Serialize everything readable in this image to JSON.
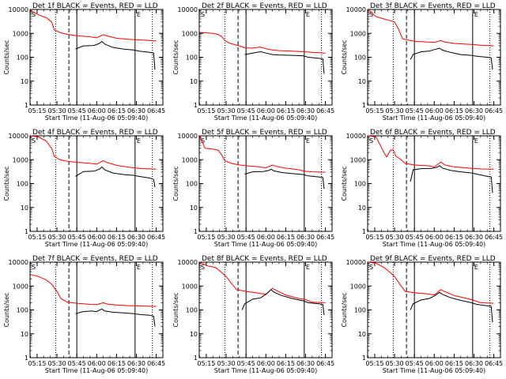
{
  "chart_data": {
    "type": "line",
    "legend_text": "BLACK = Events, RED = LLD",
    "xlabel": "Start Time (11-Aug-06 05:09:40)",
    "ylabel": "Counts/sec",
    "x_tick_labels": [
      "05:15",
      "05:30",
      "05:45",
      "06:00",
      "06:15",
      "06:30",
      "06:45"
    ],
    "x_tick_minutes": [
      15,
      30,
      45,
      60,
      75,
      90,
      105
    ],
    "xlim_minutes": [
      9.67,
      110
    ],
    "y_scale": "log",
    "ylim": [
      1,
      10000
    ],
    "y_tick_labels": [
      "1",
      "10",
      "100",
      "1000",
      "10000"
    ],
    "series_colors": {
      "events": "#000000",
      "lld": "#ff0000"
    },
    "markers_minutes": {
      "dotted": [
        29,
        102
      ],
      "dashed": [
        39
      ],
      "solid": [
        45,
        89
      ]
    },
    "corner_marks": [
      "S",
      "E"
    ],
    "panels": [
      {
        "title": "Det 1f",
        "lld": [
          [
            10,
            9000
          ],
          [
            16,
            6000
          ],
          [
            22,
            4500
          ],
          [
            26,
            3000
          ],
          [
            28,
            1400
          ],
          [
            32,
            1100
          ],
          [
            38,
            900
          ],
          [
            45,
            800
          ],
          [
            55,
            720
          ],
          [
            60,
            650
          ],
          [
            65,
            880
          ],
          [
            68,
            780
          ],
          [
            75,
            620
          ],
          [
            85,
            560
          ],
          [
            89,
            540
          ],
          [
            95,
            520
          ],
          [
            105,
            480
          ]
        ],
        "events": [
          [
            44,
            220
          ],
          [
            50,
            300
          ],
          [
            58,
            310
          ],
          [
            62,
            380
          ],
          [
            64,
            460
          ],
          [
            66,
            360
          ],
          [
            72,
            260
          ],
          [
            80,
            220
          ],
          [
            88,
            200
          ],
          [
            92,
            180
          ],
          [
            100,
            160
          ],
          [
            103,
            150
          ],
          [
            104,
            30
          ]
        ]
      },
      {
        "title": "Det 2f",
        "lld": [
          [
            10,
            1100
          ],
          [
            20,
            1000
          ],
          [
            24,
            900
          ],
          [
            27,
            700
          ],
          [
            29,
            500
          ],
          [
            33,
            380
          ],
          [
            40,
            300
          ],
          [
            44,
            250
          ],
          [
            50,
            240
          ],
          [
            56,
            270
          ],
          [
            60,
            230
          ],
          [
            65,
            200
          ],
          [
            70,
            190
          ],
          [
            80,
            180
          ],
          [
            89,
            170
          ],
          [
            95,
            160
          ],
          [
            105,
            150
          ]
        ],
        "events": [
          [
            44,
            130
          ],
          [
            50,
            150
          ],
          [
            56,
            170
          ],
          [
            60,
            150
          ],
          [
            65,
            130
          ],
          [
            70,
            125
          ],
          [
            80,
            120
          ],
          [
            88,
            115
          ],
          [
            92,
            100
          ],
          [
            100,
            90
          ],
          [
            103,
            85
          ],
          [
            104,
            20
          ]
        ]
      },
      {
        "title": "Det 3f",
        "lld": [
          [
            10,
            10000
          ],
          [
            16,
            5000
          ],
          [
            22,
            4000
          ],
          [
            26,
            3500
          ],
          [
            30,
            3000
          ],
          [
            33,
            1500
          ],
          [
            36,
            600
          ],
          [
            40,
            520
          ],
          [
            45,
            470
          ],
          [
            55,
            430
          ],
          [
            60,
            420
          ],
          [
            65,
            500
          ],
          [
            68,
            430
          ],
          [
            75,
            380
          ],
          [
            85,
            350
          ],
          [
            89,
            340
          ],
          [
            95,
            320
          ],
          [
            105,
            300
          ]
        ],
        "events": [
          [
            42,
            80
          ],
          [
            44,
            130
          ],
          [
            50,
            170
          ],
          [
            56,
            180
          ],
          [
            60,
            210
          ],
          [
            64,
            240
          ],
          [
            66,
            200
          ],
          [
            72,
            160
          ],
          [
            80,
            130
          ],
          [
            88,
            120
          ],
          [
            92,
            110
          ],
          [
            100,
            100
          ],
          [
            103,
            95
          ],
          [
            104,
            30
          ]
        ]
      },
      {
        "title": "Det 4f",
        "lld": [
          [
            10,
            10000
          ],
          [
            16,
            9000
          ],
          [
            22,
            6000
          ],
          [
            26,
            3000
          ],
          [
            28,
            1400
          ],
          [
            32,
            1000
          ],
          [
            38,
            850
          ],
          [
            45,
            780
          ],
          [
            55,
            700
          ],
          [
            60,
            650
          ],
          [
            65,
            900
          ],
          [
            68,
            760
          ],
          [
            75,
            580
          ],
          [
            85,
            480
          ],
          [
            89,
            450
          ],
          [
            95,
            420
          ],
          [
            105,
            400
          ]
        ],
        "events": [
          [
            44,
            200
          ],
          [
            50,
            320
          ],
          [
            58,
            330
          ],
          [
            62,
            400
          ],
          [
            64,
            500
          ],
          [
            66,
            380
          ],
          [
            72,
            280
          ],
          [
            80,
            240
          ],
          [
            88,
            220
          ],
          [
            92,
            200
          ],
          [
            100,
            170
          ],
          [
            103,
            150
          ],
          [
            104,
            70
          ]
        ]
      },
      {
        "title": "Det 5f",
        "lld": [
          [
            10,
            10000
          ],
          [
            14,
            3000
          ],
          [
            20,
            2800
          ],
          [
            24,
            2500
          ],
          [
            27,
            1500
          ],
          [
            29,
            900
          ],
          [
            34,
            700
          ],
          [
            40,
            600
          ],
          [
            45,
            560
          ],
          [
            55,
            500
          ],
          [
            60,
            460
          ],
          [
            65,
            600
          ],
          [
            68,
            520
          ],
          [
            75,
            440
          ],
          [
            85,
            380
          ],
          [
            89,
            330
          ],
          [
            95,
            310
          ],
          [
            105,
            300
          ]
        ],
        "events": [
          [
            44,
            250
          ],
          [
            50,
            310
          ],
          [
            58,
            320
          ],
          [
            62,
            350
          ],
          [
            64,
            400
          ],
          [
            66,
            340
          ],
          [
            72,
            290
          ],
          [
            80,
            260
          ],
          [
            88,
            240
          ],
          [
            92,
            210
          ],
          [
            100,
            190
          ],
          [
            103,
            180
          ],
          [
            104,
            60
          ]
        ]
      },
      {
        "title": "Det 6f",
        "lld": [
          [
            10,
            10000
          ],
          [
            16,
            9000
          ],
          [
            22,
            2000
          ],
          [
            24,
            1300
          ],
          [
            27,
            2500
          ],
          [
            29,
            2600
          ],
          [
            31,
            1400
          ],
          [
            34,
            1100
          ],
          [
            38,
            700
          ],
          [
            45,
            600
          ],
          [
            55,
            560
          ],
          [
            60,
            500
          ],
          [
            65,
            800
          ],
          [
            68,
            600
          ],
          [
            75,
            500
          ],
          [
            85,
            450
          ],
          [
            89,
            430
          ],
          [
            95,
            410
          ],
          [
            105,
            400
          ]
        ],
        "events": [
          [
            42,
            120
          ],
          [
            44,
            380
          ],
          [
            50,
            420
          ],
          [
            58,
            430
          ],
          [
            62,
            480
          ],
          [
            64,
            560
          ],
          [
            66,
            450
          ],
          [
            72,
            360
          ],
          [
            80,
            310
          ],
          [
            88,
            280
          ],
          [
            92,
            250
          ],
          [
            100,
            200
          ],
          [
            103,
            190
          ],
          [
            104,
            40
          ]
        ]
      },
      {
        "title": "Det 7f",
        "lld": [
          [
            10,
            3000
          ],
          [
            16,
            2500
          ],
          [
            22,
            1800
          ],
          [
            26,
            1200
          ],
          [
            30,
            600
          ],
          [
            33,
            300
          ],
          [
            38,
            210
          ],
          [
            45,
            190
          ],
          [
            55,
            170
          ],
          [
            60,
            165
          ],
          [
            65,
            200
          ],
          [
            68,
            175
          ],
          [
            75,
            160
          ],
          [
            85,
            150
          ],
          [
            89,
            150
          ],
          [
            95,
            145
          ],
          [
            105,
            140
          ]
        ],
        "events": [
          [
            44,
            70
          ],
          [
            50,
            85
          ],
          [
            56,
            90
          ],
          [
            60,
            85
          ],
          [
            64,
            110
          ],
          [
            66,
            90
          ],
          [
            72,
            80
          ],
          [
            80,
            75
          ],
          [
            88,
            70
          ],
          [
            92,
            65
          ],
          [
            100,
            60
          ],
          [
            103,
            55
          ],
          [
            104,
            20
          ]
        ]
      },
      {
        "title": "Det 8f",
        "lld": [
          [
            10,
            10000
          ],
          [
            16,
            7000
          ],
          [
            22,
            6000
          ],
          [
            26,
            4000
          ],
          [
            30,
            2500
          ],
          [
            34,
            1300
          ],
          [
            38,
            700
          ],
          [
            45,
            600
          ],
          [
            55,
            500
          ],
          [
            60,
            450
          ],
          [
            65,
            800
          ],
          [
            68,
            650
          ],
          [
            75,
            420
          ],
          [
            85,
            300
          ],
          [
            89,
            280
          ],
          [
            95,
            210
          ],
          [
            105,
            200
          ]
        ],
        "events": [
          [
            42,
            100
          ],
          [
            44,
            180
          ],
          [
            50,
            280
          ],
          [
            56,
            320
          ],
          [
            60,
            450
          ],
          [
            64,
            700
          ],
          [
            66,
            560
          ],
          [
            72,
            400
          ],
          [
            80,
            300
          ],
          [
            88,
            240
          ],
          [
            92,
            200
          ],
          [
            100,
            180
          ],
          [
            103,
            170
          ],
          [
            104,
            60
          ]
        ]
      },
      {
        "title": "Det 9f",
        "lld": [
          [
            10,
            10000
          ],
          [
            16,
            9000
          ],
          [
            22,
            6000
          ],
          [
            26,
            4000
          ],
          [
            30,
            2500
          ],
          [
            34,
            1200
          ],
          [
            38,
            600
          ],
          [
            45,
            520
          ],
          [
            55,
            470
          ],
          [
            60,
            420
          ],
          [
            65,
            700
          ],
          [
            68,
            580
          ],
          [
            75,
            400
          ],
          [
            85,
            300
          ],
          [
            89,
            260
          ],
          [
            95,
            200
          ],
          [
            105,
            190
          ]
        ],
        "events": [
          [
            42,
            100
          ],
          [
            44,
            180
          ],
          [
            50,
            260
          ],
          [
            56,
            300
          ],
          [
            60,
            380
          ],
          [
            64,
            540
          ],
          [
            66,
            450
          ],
          [
            72,
            330
          ],
          [
            80,
            250
          ],
          [
            88,
            200
          ],
          [
            92,
            170
          ],
          [
            100,
            150
          ],
          [
            103,
            140
          ],
          [
            104,
            30
          ]
        ]
      }
    ]
  }
}
